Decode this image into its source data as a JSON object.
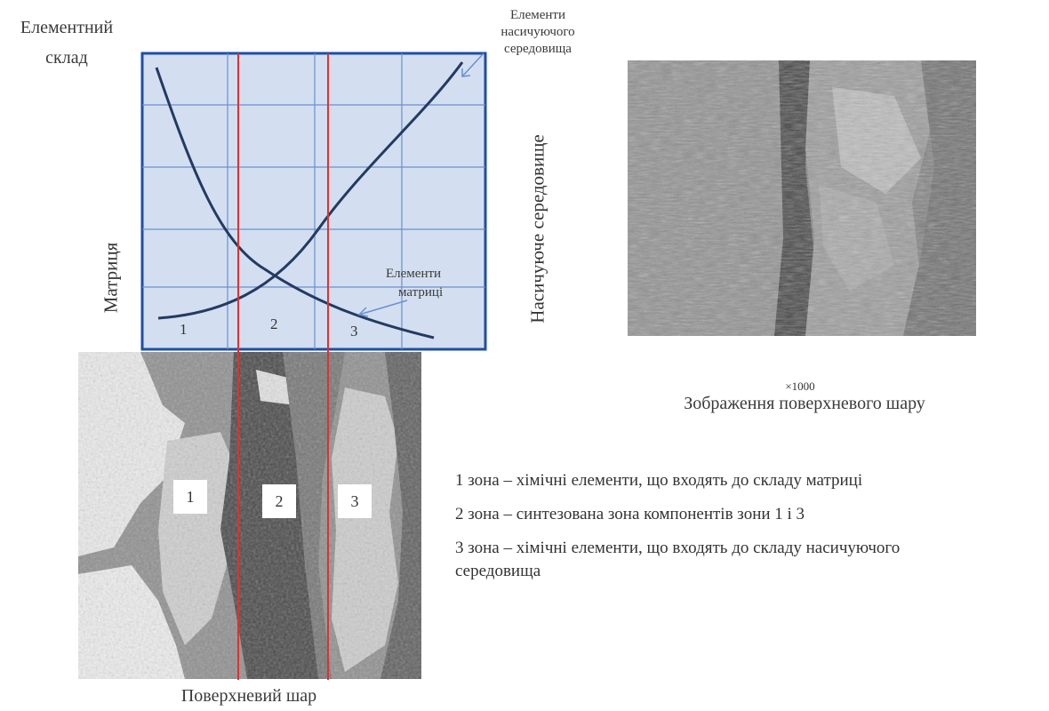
{
  "chart": {
    "y_label_top_line1": "Елементний",
    "y_label_top_line2": "склад",
    "left_axis_label": "Матриця",
    "right_axis_label": "Насичуюче середовище",
    "annotation_medium_line1": "Елементи",
    "annotation_medium_line2": "насичуючого",
    "annotation_medium_line3": "середовища",
    "annotation_matrix_line1": "Елементи",
    "annotation_matrix_line2": "матриці",
    "zone_1": "1",
    "zone_2": "2",
    "zone_3": "3",
    "colors": {
      "plot_bg": "#d3dff0",
      "grid": "#6b8fd0",
      "curve": "#243a63",
      "border": "#1f4da8",
      "zone_line": "#e03030"
    }
  },
  "micrograph": {
    "label_1": "1",
    "label_2": "2",
    "label_3": "3",
    "caption": "Поверхневий шар"
  },
  "sem_image": {
    "magnification": "×1000",
    "caption": "Зображення поверхневого шару"
  },
  "legend": {
    "item_1": "1 зона – хімічні елементи, що входять до складу матриці",
    "item_2": "2 зона – синтезована зона компонентів зони 1 і 3",
    "item_3_line1": "3 зона – хімічні елементи, що входять до складу насичуючого",
    "item_3_line2": "середовища"
  }
}
